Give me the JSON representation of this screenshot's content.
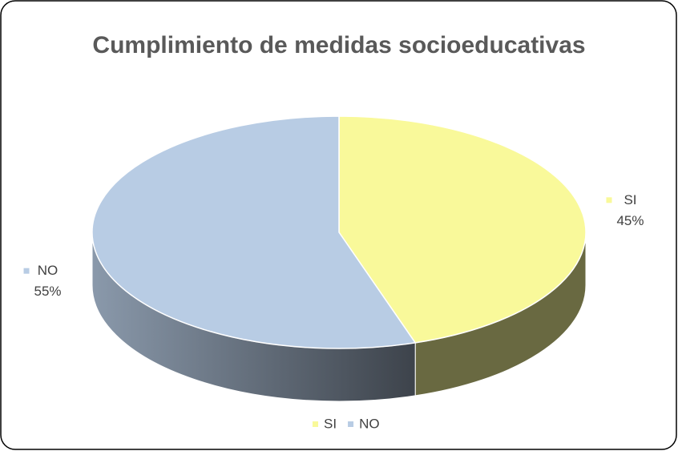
{
  "chart_data": {
    "type": "pie",
    "title": "Cumplimiento de medidas socioeducativas",
    "categories": [
      "SI",
      "NO"
    ],
    "values": [
      45,
      55
    ],
    "value_labels": [
      "45%",
      "55%"
    ],
    "colors": [
      "#f9f99a",
      "#b8cce4"
    ],
    "legend": "bottom"
  }
}
